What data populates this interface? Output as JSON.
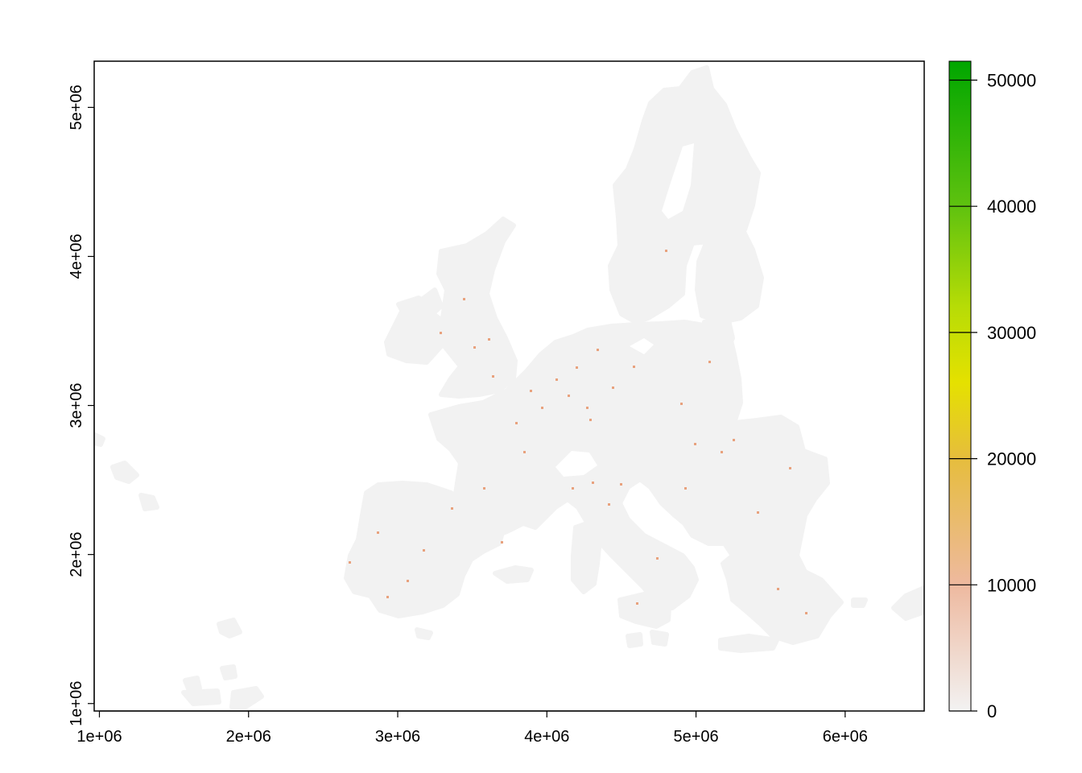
{
  "chart_data": {
    "type": "heatmap",
    "title": "",
    "xlabel": "",
    "ylabel": "",
    "xlim": [
      965000,
      6530000
    ],
    "ylim": [
      950000,
      5310000
    ],
    "x_ticks": [
      {
        "value": 1000000,
        "label": "1e+06"
      },
      {
        "value": 2000000,
        "label": "2e+06"
      },
      {
        "value": 3000000,
        "label": "3e+06"
      },
      {
        "value": 4000000,
        "label": "4e+06"
      },
      {
        "value": 5000000,
        "label": "5e+06"
      },
      {
        "value": 6000000,
        "label": "6e+06"
      }
    ],
    "y_ticks": [
      {
        "value": 1000000,
        "label": "1e+06"
      },
      {
        "value": 2000000,
        "label": "2e+06"
      },
      {
        "value": 3000000,
        "label": "3e+06"
      },
      {
        "value": 4000000,
        "label": "4e+06"
      },
      {
        "value": 5000000,
        "label": "5e+06"
      }
    ],
    "grid": false,
    "legend": {
      "placement": "right",
      "range": [
        0,
        51500
      ],
      "ticks": [
        {
          "value": 0,
          "label": "0"
        },
        {
          "value": 10000,
          "label": "10000"
        },
        {
          "value": 20000,
          "label": "20000"
        },
        {
          "value": 30000,
          "label": "30000"
        },
        {
          "value": 40000,
          "label": "40000"
        },
        {
          "value": 50000,
          "label": "50000"
        }
      ],
      "color_stops": [
        {
          "value": 0,
          "color": "#f2f2f2"
        },
        {
          "value": 10000,
          "color": "#eeb99f"
        },
        {
          "value": 20000,
          "color": "#e6bd3d"
        },
        {
          "value": 26000,
          "color": "#e5e100"
        },
        {
          "value": 32000,
          "color": "#b7dc06"
        },
        {
          "value": 40000,
          "color": "#5fc20f"
        },
        {
          "value": 51500,
          "color": "#00a600"
        }
      ]
    },
    "land_color": "#f2f2f2",
    "hotspot_color": "#e8a27e"
  }
}
